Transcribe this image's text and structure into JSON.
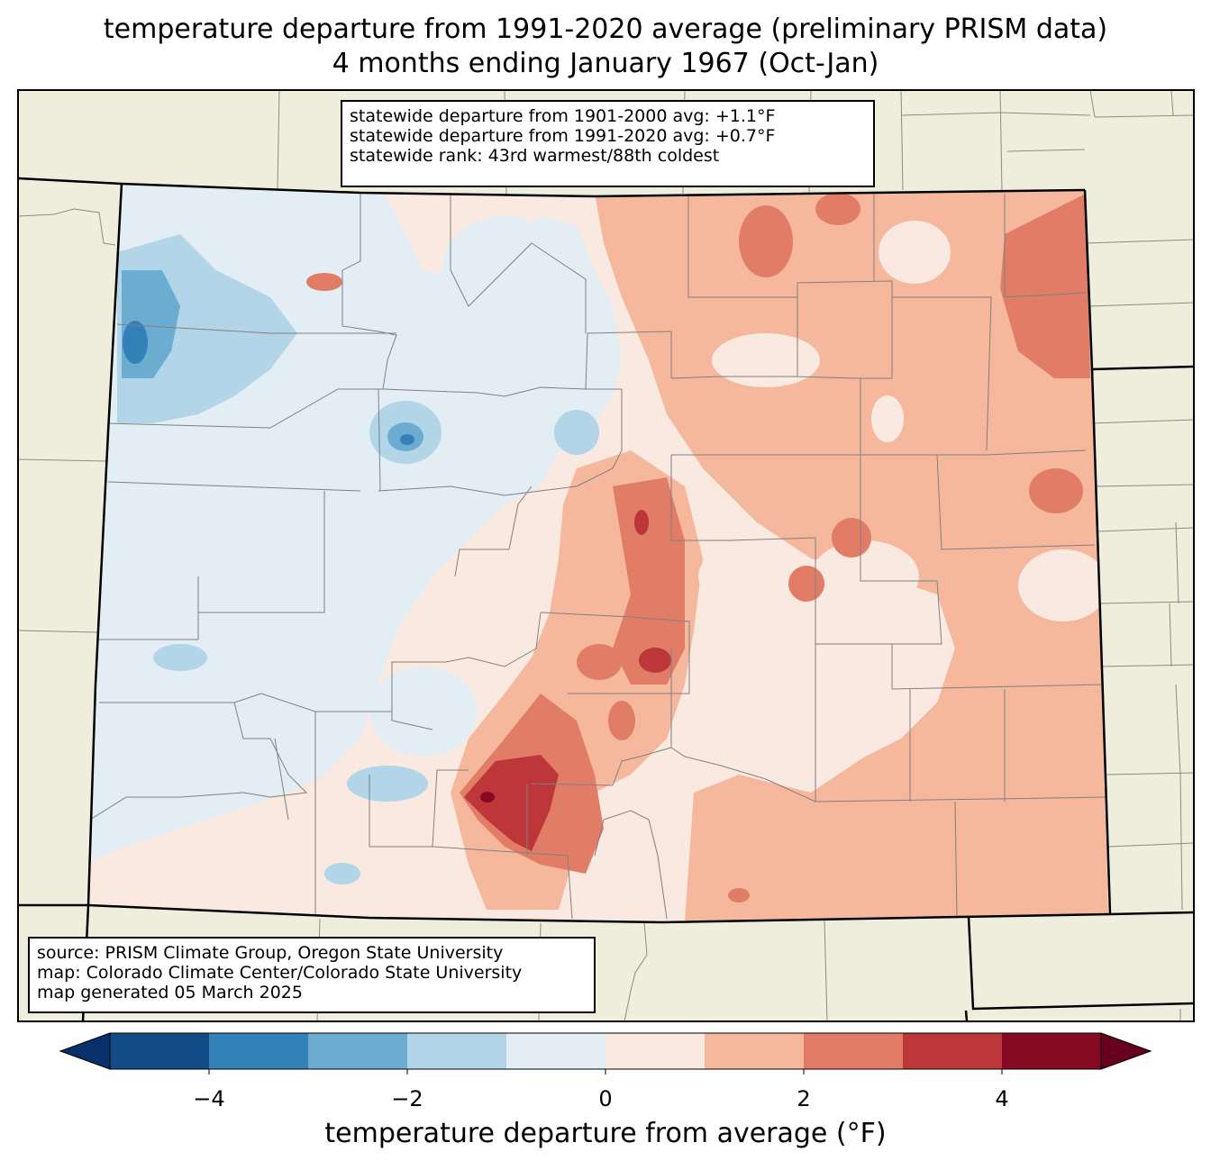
{
  "title": {
    "line1": "temperature departure from 1991-2020 average (preliminary PRISM data)",
    "line2": "4 months ending January 1967 (Oct-Jan)"
  },
  "stats": {
    "line1": "statewide departure from 1901-2000 avg: +1.1°F",
    "line2": "statewide departure from 1991-2020 avg: +0.7°F",
    "line3": "statewide rank: 43rd warmest/88th coldest"
  },
  "source": {
    "line1": "source: PRISM Climate Group, Oregon State University",
    "line2": "map: Colorado Climate Center/Colorado State University",
    "line3": "map generated 05 March 2025"
  },
  "colorbar": {
    "label": "temperature departure from average (°F)",
    "ticks": [
      "−4",
      "−2",
      "0",
      "2",
      "4"
    ],
    "bins": [
      {
        "min": -5,
        "max": -4,
        "color": "#134b87"
      },
      {
        "min": -4,
        "max": -3,
        "color": "#3480b9"
      },
      {
        "min": -3,
        "max": -2,
        "color": "#6bacd0"
      },
      {
        "min": -2,
        "max": -1,
        "color": "#b2d5e7"
      },
      {
        "min": -1,
        "max": 0,
        "color": "#e3edf4"
      },
      {
        "min": 0,
        "max": 1,
        "color": "#f9e9e1"
      },
      {
        "min": 1,
        "max": 2,
        "color": "#f6b89c"
      },
      {
        "min": 2,
        "max": 3,
        "color": "#e17d67"
      },
      {
        "min": 3,
        "max": 4,
        "color": "#bd3639"
      },
      {
        "min": 4,
        "max": 5,
        "color": "#870a24"
      }
    ],
    "under_color": "#08306b",
    "over_color": "#67001f"
  },
  "map": {
    "land_color": "#efeedc",
    "state": "Colorado"
  }
}
